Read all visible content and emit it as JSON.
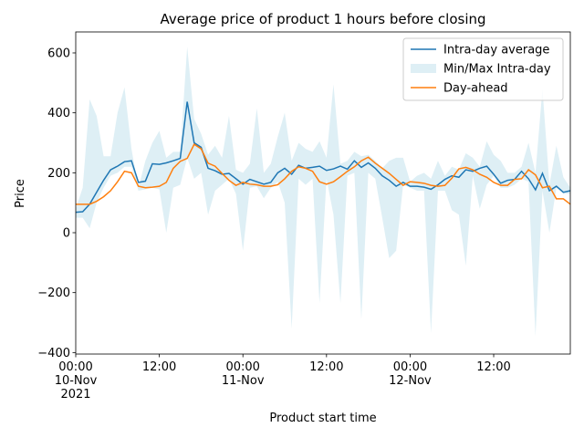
{
  "chart_data": {
    "type": "line",
    "title": "Average price of product 1 hours before closing",
    "xlabel": "Product start time",
    "ylabel": "Price",
    "x": [
      "2021-11-10 00:00",
      "2021-11-10 01:00",
      "2021-11-10 02:00",
      "2021-11-10 03:00",
      "2021-11-10 04:00",
      "2021-11-10 05:00",
      "2021-11-10 06:00",
      "2021-11-10 07:00",
      "2021-11-10 08:00",
      "2021-11-10 09:00",
      "2021-11-10 10:00",
      "2021-11-10 11:00",
      "2021-11-10 12:00",
      "2021-11-10 13:00",
      "2021-11-10 14:00",
      "2021-11-10 15:00",
      "2021-11-10 16:00",
      "2021-11-10 17:00",
      "2021-11-10 18:00",
      "2021-11-10 19:00",
      "2021-11-10 20:00",
      "2021-11-10 21:00",
      "2021-11-10 22:00",
      "2021-11-10 23:00",
      "2021-11-11 00:00",
      "2021-11-11 01:00",
      "2021-11-11 02:00",
      "2021-11-11 03:00",
      "2021-11-11 04:00",
      "2021-11-11 05:00",
      "2021-11-11 06:00",
      "2021-11-11 07:00",
      "2021-11-11 08:00",
      "2021-11-11 09:00",
      "2021-11-11 10:00",
      "2021-11-11 11:00",
      "2021-11-11 12:00",
      "2021-11-11 13:00",
      "2021-11-11 14:00",
      "2021-11-11 15:00",
      "2021-11-11 16:00",
      "2021-11-11 17:00",
      "2021-11-11 18:00",
      "2021-11-11 19:00",
      "2021-11-11 20:00",
      "2021-11-11 21:00",
      "2021-11-11 22:00",
      "2021-11-11 23:00",
      "2021-11-12 00:00",
      "2021-11-12 01:00",
      "2021-11-12 02:00",
      "2021-11-12 03:00",
      "2021-11-12 04:00",
      "2021-11-12 05:00",
      "2021-11-12 06:00",
      "2021-11-12 07:00",
      "2021-11-12 08:00",
      "2021-11-12 09:00",
      "2021-11-12 10:00",
      "2021-11-12 11:00",
      "2021-11-12 12:00",
      "2021-11-12 13:00",
      "2021-11-12 14:00",
      "2021-11-12 15:00",
      "2021-11-12 16:00",
      "2021-11-12 17:00",
      "2021-11-12 18:00",
      "2021-11-12 19:00",
      "2021-11-12 20:00",
      "2021-11-12 21:00",
      "2021-11-12 22:00",
      "2021-11-12 23:00"
    ],
    "band": {
      "name": "Min/Max Intra-day",
      "color": "#add8e6",
      "opacity": 0.4,
      "max": [
        80,
        150,
        445,
        390,
        255,
        255,
        400,
        485,
        280,
        150,
        240,
        300,
        340,
        250,
        270,
        270,
        620,
        380,
        330,
        260,
        290,
        250,
        390,
        210,
        200,
        230,
        415,
        200,
        230,
        320,
        400,
        240,
        300,
        280,
        270,
        305,
        250,
        495,
        230,
        240,
        270,
        255,
        260,
        240,
        215,
        240,
        250,
        250,
        170,
        190,
        200,
        180,
        240,
        190,
        220,
        210,
        265,
        250,
        220,
        305,
        260,
        240,
        200,
        200,
        220,
        300,
        200,
        480,
        160,
        290,
        185,
        150
      ],
      "min": [
        50,
        50,
        15,
        100,
        150,
        190,
        200,
        220,
        220,
        140,
        145,
        150,
        145,
        0,
        150,
        160,
        250,
        180,
        200,
        60,
        140,
        160,
        180,
        130,
        -60,
        150,
        155,
        115,
        150,
        170,
        100,
        -320,
        180,
        160,
        180,
        -235,
        180,
        60,
        -235,
        190,
        200,
        -290,
        200,
        180,
        50,
        -85,
        -60,
        160,
        150,
        140,
        140,
        -335,
        140,
        140,
        75,
        60,
        -110,
        190,
        80,
        160,
        190,
        150,
        150,
        160,
        180,
        170,
        -345,
        140,
        0,
        150,
        130,
        130
      ]
    },
    "series": [
      {
        "name": "Intra-day average",
        "color": "#1f77b4",
        "values": [
          68,
          70,
          95,
          135,
          175,
          210,
          222,
          237,
          240,
          168,
          172,
          230,
          228,
          233,
          240,
          248,
          437,
          300,
          285,
          215,
          207,
          195,
          198,
          180,
          162,
          178,
          170,
          162,
          168,
          200,
          215,
          195,
          225,
          215,
          218,
          222,
          208,
          213,
          222,
          212,
          240,
          218,
          233,
          215,
          190,
          175,
          155,
          168,
          155,
          155,
          152,
          145,
          160,
          178,
          190,
          185,
          210,
          205,
          215,
          222,
          195,
          165,
          175,
          178,
          205,
          180,
          143,
          198,
          140,
          155,
          135,
          140
        ]
      },
      {
        "name": "Day-ahead",
        "color": "#ff7f0e",
        "values": [
          95,
          95,
          95,
          105,
          120,
          140,
          170,
          205,
          200,
          155,
          150,
          152,
          155,
          168,
          215,
          238,
          248,
          295,
          280,
          232,
          222,
          198,
          175,
          158,
          168,
          162,
          160,
          155,
          155,
          160,
          180,
          205,
          220,
          215,
          205,
          170,
          162,
          170,
          187,
          205,
          220,
          240,
          252,
          232,
          215,
          198,
          178,
          158,
          170,
          168,
          165,
          158,
          155,
          158,
          182,
          213,
          218,
          210,
          195,
          185,
          168,
          158,
          158,
          178,
          180,
          210,
          193,
          150,
          155,
          113,
          113,
          95
        ]
      }
    ],
    "xlim": [
      "2021-11-10 00:00",
      "2021-11-12 23:00"
    ],
    "xticks": [
      {
        "value": "2021-11-10 00:00",
        "label": [
          "00:00",
          "10-Nov",
          "2021"
        ]
      },
      {
        "value": "2021-11-10 12:00",
        "label": [
          "12:00"
        ]
      },
      {
        "value": "2021-11-11 00:00",
        "label": [
          "00:00",
          "11-Nov"
        ]
      },
      {
        "value": "2021-11-11 12:00",
        "label": [
          "12:00"
        ]
      },
      {
        "value": "2021-11-12 00:00",
        "label": [
          "00:00",
          "12-Nov"
        ]
      },
      {
        "value": "2021-11-12 12:00",
        "label": [
          "12:00"
        ]
      }
    ],
    "ylim": [
      -405,
      670
    ],
    "yticks": [
      {
        "value": -400,
        "label": "−400"
      },
      {
        "value": -200,
        "label": "−200"
      },
      0,
      200,
      400,
      600
    ],
    "legend": "upper right"
  }
}
